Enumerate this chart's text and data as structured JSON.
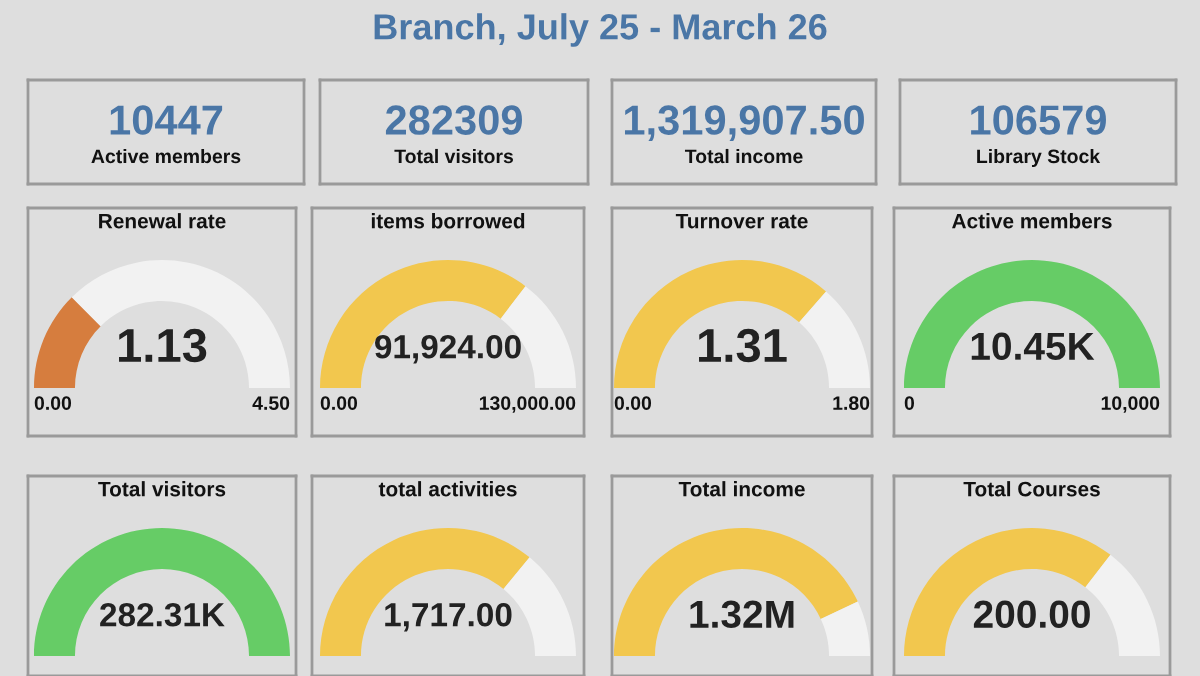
{
  "chart_data": [
    {
      "type": "other",
      "title": "Branch, July 25 - March 26"
    },
    {
      "type": "other",
      "annotations": [
        "10447",
        "Active members"
      ]
    },
    {
      "type": "other",
      "annotations": [
        "282309",
        "Total visitors"
      ]
    },
    {
      "type": "other",
      "annotations": [
        "1,319,907.50",
        "Total income"
      ]
    },
    {
      "type": "other",
      "annotations": [
        "106579",
        "Library Stock"
      ]
    },
    {
      "type": "donut",
      "title": "Renewal rate",
      "categories": [
        null,
        null
      ],
      "values": [
        25.1,
        74.9
      ],
      "colors": [
        "#d67d3e",
        "#f2f2f2"
      ],
      "annotations": [
        "1.13",
        "0.00",
        "4.50"
      ]
    },
    {
      "type": "donut",
      "title": "items borrowed",
      "categories": [
        null,
        null
      ],
      "values": [
        70.7,
        29.3
      ],
      "colors": [
        "#f2c74e",
        "#f2f2f2"
      ],
      "annotations": [
        "91,924.00",
        "0.00",
        "130,000.00"
      ]
    },
    {
      "type": "donut",
      "title": "Turnover rate",
      "categories": [
        null,
        null
      ],
      "values": [
        72.8,
        27.2
      ],
      "colors": [
        "#f2c74e",
        "#f2f2f2"
      ],
      "annotations": [
        "1.31",
        "0.00",
        "1.80"
      ]
    },
    {
      "type": "pie",
      "title": "Active members",
      "categories": [
        null,
        null
      ],
      "values": [
        100,
        0
      ],
      "colors": [
        "#66cc66",
        "#f2f2f2"
      ],
      "annotations": [
        "10.45K",
        "0",
        "10,000"
      ]
    },
    {
      "type": "pie",
      "title": "Total visitors",
      "categories": [
        null,
        null
      ],
      "values": [
        100,
        0
      ],
      "colors": [
        "#66cc66",
        "#f2f2f2"
      ],
      "annotations": [
        "282.31K"
      ]
    },
    {
      "type": "donut",
      "title": "total activities",
      "categories": [
        null,
        null
      ],
      "values": [
        72,
        28
      ],
      "colors": [
        "#f2c74e",
        "#f2f2f2"
      ],
      "annotations": [
        "1,717.00"
      ]
    },
    {
      "type": "donut",
      "title": "Total income",
      "categories": [
        null,
        null
      ],
      "values": [
        86,
        14
      ],
      "colors": [
        "#f2c74e",
        "#f2f2f2"
      ],
      "annotations": [
        "1.32M"
      ]
    },
    {
      "type": "donut",
      "title": "Total Courses",
      "categories": [
        null,
        null
      ],
      "values": [
        71,
        29
      ],
      "colors": [
        "#f2c74e",
        "#f2f2f2"
      ],
      "annotations": [
        "200.00"
      ]
    }
  ]
}
